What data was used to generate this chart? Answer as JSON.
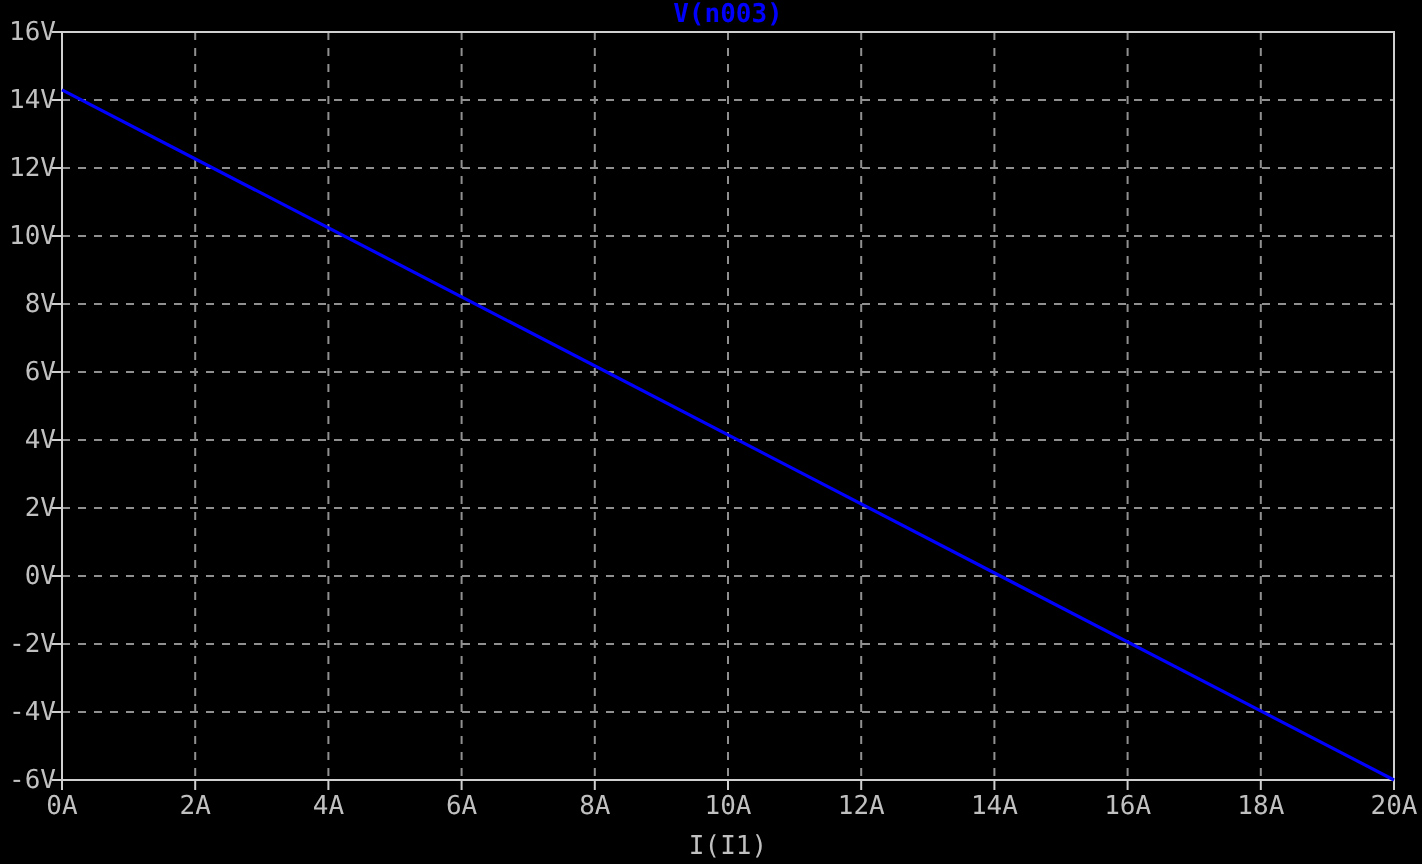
{
  "chart_data": {
    "type": "line",
    "title": "V(n003)",
    "xlabel": "I(I1)",
    "x": [
      0,
      20
    ],
    "series": [
      {
        "color": "#0000ff",
        "values": [
          14.3,
          -6
        ]
      }
    ],
    "xlim": [
      0,
      20
    ],
    "xticks": [
      {
        "value": 0,
        "label": "0A"
      },
      {
        "value": 2,
        "label": "2A"
      },
      {
        "value": 4,
        "label": "4A"
      },
      {
        "value": 6,
        "label": "6A"
      },
      {
        "value": 8,
        "label": "8A"
      },
      {
        "value": 10,
        "label": "10A"
      },
      {
        "value": 12,
        "label": "12A"
      },
      {
        "value": 14,
        "label": "14A"
      },
      {
        "value": 16,
        "label": "16A"
      },
      {
        "value": 18,
        "label": "18A"
      },
      {
        "value": 20,
        "label": "20A"
      }
    ],
    "ylim": [
      -6,
      16
    ],
    "yticks": [
      {
        "value": -6,
        "label": "-6V"
      },
      {
        "value": -4,
        "label": "-4V"
      },
      {
        "value": -2,
        "label": "-2V"
      },
      {
        "value": 0,
        "label": "0V"
      },
      {
        "value": 2,
        "label": "2V"
      },
      {
        "value": 4,
        "label": "4V"
      },
      {
        "value": 6,
        "label": "6V"
      },
      {
        "value": 8,
        "label": "8V"
      },
      {
        "value": 10,
        "label": "10V"
      },
      {
        "value": 12,
        "label": "12V"
      },
      {
        "value": 14,
        "label": "14V"
      },
      {
        "value": 16,
        "label": "16V"
      }
    ],
    "grid": true,
    "marker": "none",
    "line_style": "solid"
  }
}
